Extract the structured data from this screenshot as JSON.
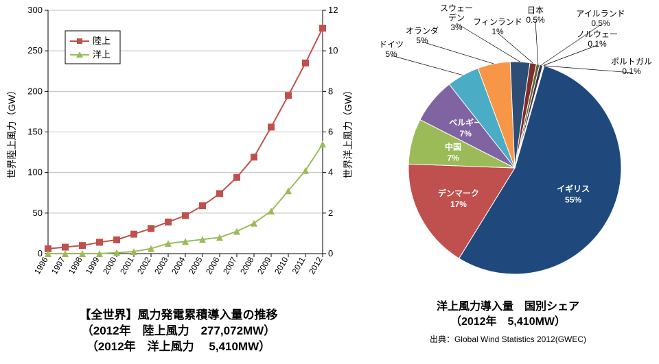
{
  "left_chart": {
    "type": "line",
    "categories": [
      "1996",
      "1997",
      "1998",
      "1999",
      "2000",
      "2001",
      "2002",
      "2003",
      "2004",
      "2005",
      "2006",
      "2007",
      "2008",
      "2009",
      "2010",
      "2011",
      "2012"
    ],
    "series1": {
      "name": "陸上",
      "color": "#c0504d",
      "marker": "square",
      "values": [
        6,
        8,
        10,
        14,
        17,
        24,
        31,
        39,
        47,
        59,
        74,
        94,
        119,
        156,
        195,
        235,
        278
      ]
    },
    "series2": {
      "name": "洋上",
      "color": "#9bbb59",
      "marker": "triangle",
      "values": [
        0,
        0,
        0,
        0,
        0.05,
        0.1,
        0.25,
        0.5,
        0.6,
        0.7,
        0.8,
        1.1,
        1.5,
        2.1,
        3.1,
        4.1,
        5.4
      ]
    },
    "y_left": {
      "label": "世界陸上風力（GW）",
      "min": 0,
      "max": 300,
      "step": 50,
      "ticks": [
        0,
        50,
        100,
        150,
        200,
        250,
        300
      ]
    },
    "y_right": {
      "label": "世界洋上風力（GW）",
      "min": 0,
      "max": 12,
      "step": 2,
      "ticks": [
        0,
        2,
        4,
        6,
        8,
        10,
        12
      ]
    },
    "grid_color": "#bfbfbf",
    "line_width": 2,
    "marker_size": 5,
    "title_line1": "【全世界】風力発電累積導入量の推移",
    "title_line2": "（2012年　陸上風力　277,072MW）",
    "title_line3": "（2012年　洋上風力　  5,410MW）"
  },
  "pie": {
    "type": "pie",
    "title_line1": "洋上風力導入量　国別シェア",
    "title_line2": "（2012年　5,410MW）",
    "source": "出典：Global Wind Statistics 2012(GWEC)",
    "slices": [
      {
        "label": "イギリス",
        "pct": 55,
        "color": "#1f497d",
        "text_color": "#fff",
        "pull": 0
      },
      {
        "label": "デンマーク",
        "pct": 17,
        "color": "#c0504d",
        "text_color": "#fff",
        "pull": 0
      },
      {
        "label": "中国",
        "pct": 7,
        "color": "#9bbb59",
        "text_color": "#fff",
        "pull": 0
      },
      {
        "label": "ベルギー",
        "pct": 7,
        "color": "#8064a2",
        "text_color": "#fff",
        "pull": 0
      },
      {
        "label": "ドイツ",
        "pct": 5,
        "color": "#4bacc6",
        "text_color": "#000",
        "pull": 0
      },
      {
        "label": "オランダ",
        "pct": 5,
        "color": "#f79646",
        "text_color": "#000",
        "pull": 0
      },
      {
        "label": "スウェーデン",
        "pct": 3,
        "color": "#2c4d75",
        "text_color": "#000",
        "pull": 0
      },
      {
        "label": "フィンランド",
        "pct": 1,
        "color": "#7f2e2b",
        "text_color": "#000",
        "pull": 0
      },
      {
        "label": "日本",
        "pct": 0.5,
        "color": "#5a6b2f",
        "text_color": "#000",
        "pull": 0
      },
      {
        "label": "アイルランド",
        "pct": 0.5,
        "color": "#3f3151",
        "text_color": "#000",
        "pull": 0
      },
      {
        "label": "ノルウェー",
        "pct": 0.1,
        "color": "#276a7c",
        "text_color": "#000",
        "pull": 0
      },
      {
        "label": "ポルトガル",
        "pct": 0.1,
        "color": "#b65708",
        "text_color": "#000",
        "pull": 0
      }
    ],
    "label_fontsize": 12,
    "start_angle": -74
  }
}
